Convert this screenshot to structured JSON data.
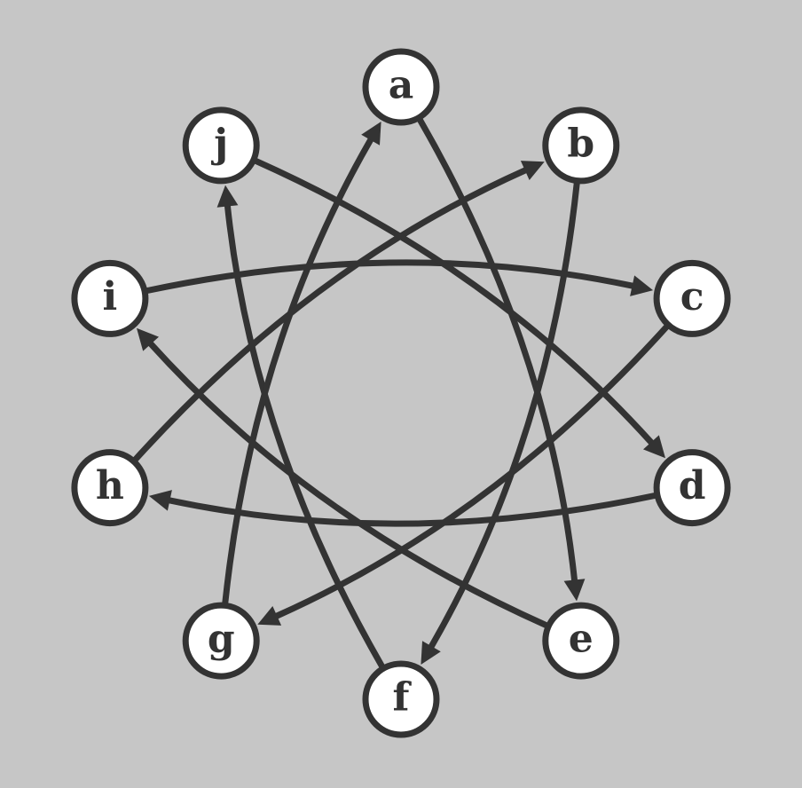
{
  "diagram": {
    "type": "directed-graph",
    "colors": {
      "background": "#c6c6c6",
      "stroke": "#333333",
      "node_fill": "#ffffff"
    },
    "nodes": [
      {
        "id": "a",
        "label": "a"
      },
      {
        "id": "b",
        "label": "b"
      },
      {
        "id": "c",
        "label": "c"
      },
      {
        "id": "d",
        "label": "d"
      },
      {
        "id": "e",
        "label": "e"
      },
      {
        "id": "f",
        "label": "f"
      },
      {
        "id": "g",
        "label": "g"
      },
      {
        "id": "h",
        "label": "h"
      },
      {
        "id": "i",
        "label": "i"
      },
      {
        "id": "j",
        "label": "j"
      }
    ],
    "edges": [
      {
        "from": "a",
        "to": "e"
      },
      {
        "from": "b",
        "to": "f"
      },
      {
        "from": "c",
        "to": "g"
      },
      {
        "from": "d",
        "to": "h"
      },
      {
        "from": "e",
        "to": "i"
      },
      {
        "from": "f",
        "to": "j"
      },
      {
        "from": "g",
        "to": "a"
      },
      {
        "from": "h",
        "to": "b"
      },
      {
        "from": "i",
        "to": "c"
      },
      {
        "from": "j",
        "to": "d"
      }
    ]
  }
}
